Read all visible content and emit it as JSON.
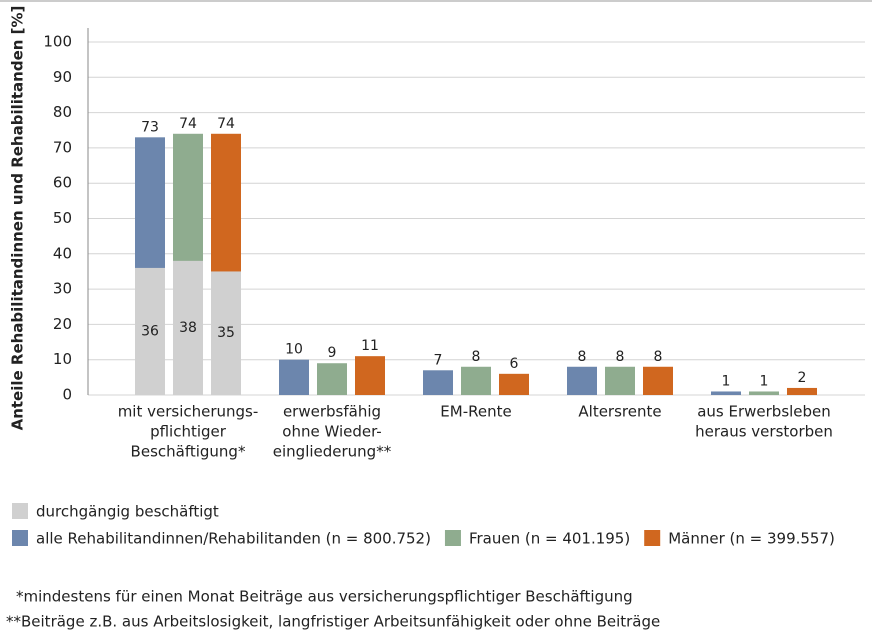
{
  "chart_data": {
    "type": "bar",
    "y_label": "Anteile Rehabilitandinnen und Rehabilitanden [%]",
    "categories": [
      [
        "mit versicherungs-",
        "pflichtiger",
        "Beschäftigung*"
      ],
      [
        "erwerbsfähig",
        "ohne Wieder-",
        "eingliederung**"
      ],
      [
        "EM-Rente"
      ],
      [
        "Altersrente"
      ],
      [
        "aus Erwerbsleben",
        "heraus verstorben"
      ]
    ],
    "series": [
      {
        "name": "alle Rehabilitandinnen/Rehabilitanden (n = 800.752)",
        "color": "#6c86ad",
        "values": [
          73,
          10,
          7,
          8,
          1
        ],
        "subset_values": [
          36,
          null,
          null,
          null,
          null
        ]
      },
      {
        "name": "Frauen (n = 401.195)",
        "color": "#8fac8f",
        "values": [
          74,
          9,
          8,
          8,
          1
        ],
        "subset_values": [
          38,
          null,
          null,
          null,
          null
        ]
      },
      {
        "name": "Männer (n = 399.557)",
        "color": "#d0671f",
        "values": [
          74,
          11,
          6,
          8,
          2
        ],
        "subset_values": [
          35,
          null,
          null,
          null,
          null
        ]
      }
    ],
    "subset": {
      "name": "durchgängig beschäftigt",
      "color": "#d0d0d0"
    },
    "ylim": [
      0,
      100
    ],
    "yticks": [
      0,
      10,
      20,
      30,
      40,
      50,
      60,
      70,
      80,
      90,
      100
    ],
    "grid": true,
    "notes": [
      "*mindestens für einen Monat Beiträge aus versicherungspflichtiger Beschäftigung",
      "**Beiträge z.B. aus Arbeitslosigkeit, langfristiger Arbeitsunfähigkeit oder ohne Beiträge"
    ]
  }
}
